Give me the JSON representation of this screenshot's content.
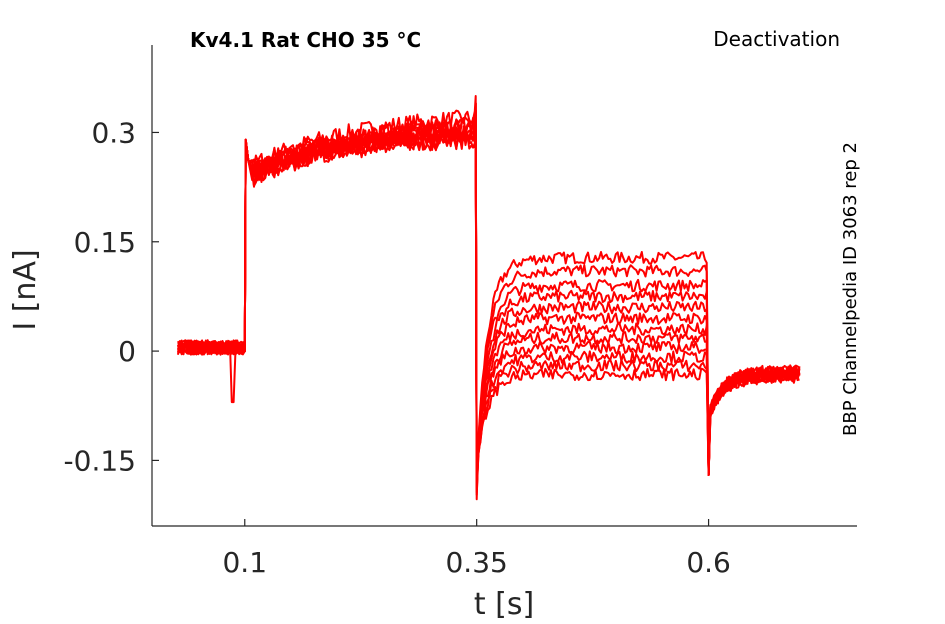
{
  "chart_data": {
    "type": "line",
    "title": "Kv4.1  Rat  CHO  35 °C",
    "subtitle": "Deactivation",
    "side_note": "BBP Channelpedia ID 3063 rep 2",
    "xlabel": "t [s]",
    "ylabel": "I [nA]",
    "xlim": [
      0.0,
      0.76
    ],
    "ylim": [
      -0.24,
      0.42
    ],
    "xticks": [
      0.1,
      0.35,
      0.6
    ],
    "xtick_labels": [
      "0.1",
      "0.35",
      "0.6"
    ],
    "yticks": [
      -0.15,
      0,
      0.15,
      0.3
    ],
    "ytick_labels": [
      "-0.15",
      "0",
      "0.15",
      "0.3"
    ],
    "grid": false,
    "series_color": "#ff0000",
    "protocol": {
      "t_start": 0.028,
      "t_step1": 0.1,
      "t_step2": 0.35,
      "t_step3": 0.6,
      "t_end": 0.7
    },
    "series": [
      {
        "step1_start": 0.25,
        "step1_end": 0.32,
        "tail_level": 0.128,
        "final_level": -0.03
      },
      {
        "step1_start": 0.24,
        "step1_end": 0.31,
        "tail_level": 0.11,
        "final_level": -0.032
      },
      {
        "step1_start": 0.25,
        "step1_end": 0.3,
        "tail_level": 0.09,
        "final_level": -0.028
      },
      {
        "step1_start": 0.23,
        "step1_end": 0.3,
        "tail_level": 0.075,
        "final_level": -0.034
      },
      {
        "step1_start": 0.24,
        "step1_end": 0.31,
        "tail_level": 0.06,
        "final_level": -0.03
      },
      {
        "step1_start": 0.25,
        "step1_end": 0.29,
        "tail_level": 0.045,
        "final_level": -0.032
      },
      {
        "step1_start": 0.24,
        "step1_end": 0.3,
        "tail_level": 0.03,
        "final_level": -0.035
      },
      {
        "step1_start": 0.23,
        "step1_end": 0.3,
        "tail_level": 0.018,
        "final_level": -0.03
      },
      {
        "step1_start": 0.24,
        "step1_end": 0.29,
        "tail_level": 0.005,
        "final_level": -0.033
      },
      {
        "step1_start": 0.25,
        "step1_end": 0.31,
        "tail_level": -0.008,
        "final_level": -0.031
      },
      {
        "step1_start": 0.24,
        "step1_end": 0.3,
        "tail_level": -0.02,
        "final_level": -0.034
      },
      {
        "step1_start": 0.23,
        "step1_end": 0.3,
        "tail_level": -0.032,
        "final_level": -0.03
      }
    ]
  }
}
